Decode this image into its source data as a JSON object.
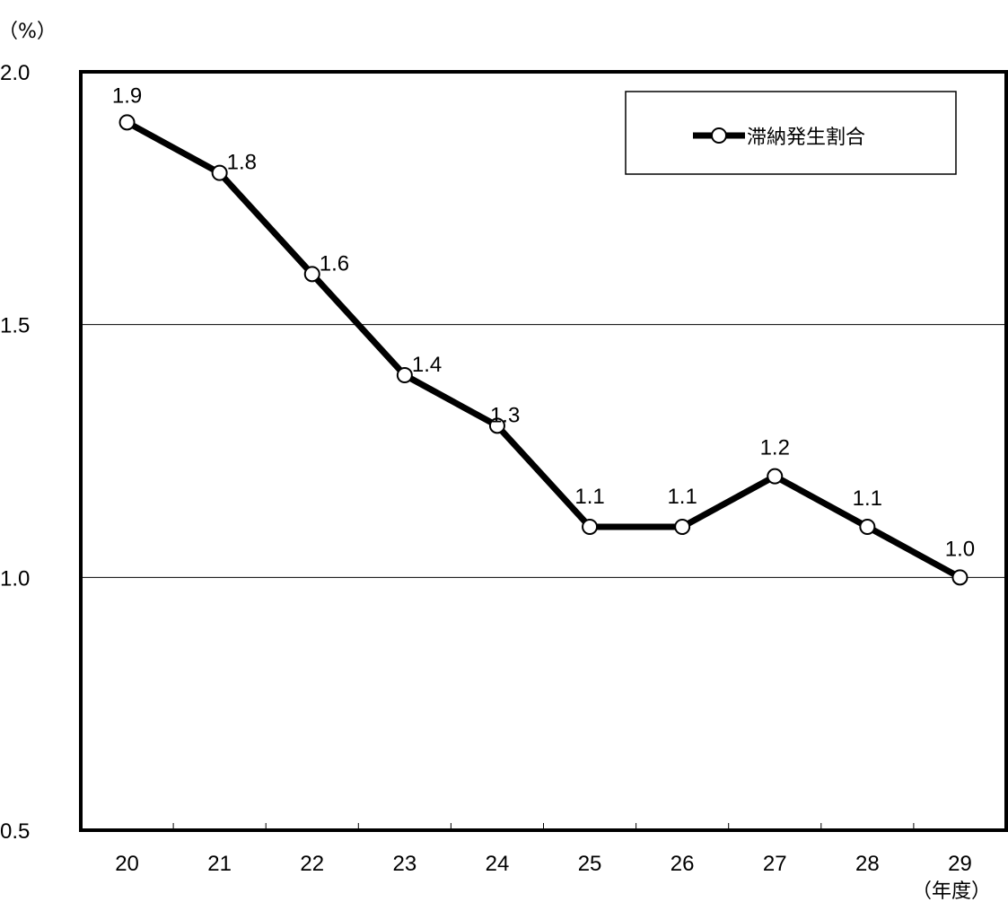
{
  "chart_data": {
    "type": "line",
    "y_unit": "（%）",
    "x_unit": "（年度）",
    "categories": [
      "20",
      "21",
      "22",
      "23",
      "24",
      "25",
      "26",
      "27",
      "28",
      "29"
    ],
    "series": [
      {
        "name": "滞納発生割合",
        "values": [
          1.9,
          1.8,
          1.6,
          1.4,
          1.3,
          1.1,
          1.1,
          1.2,
          1.1,
          1.0
        ],
        "labels": [
          "1.9",
          "1.8",
          "1.6",
          "1.4",
          "1.3",
          "1.1",
          "1.1",
          "1.2",
          "1.1",
          "1.0"
        ],
        "color": "#000000",
        "marker": "hollow-circle"
      }
    ],
    "yticks": [
      "0.5",
      "1.0",
      "1.5",
      "2.0"
    ],
    "ylim": [
      0.5,
      2.0
    ],
    "grid": true,
    "legend_position": "top-right"
  }
}
